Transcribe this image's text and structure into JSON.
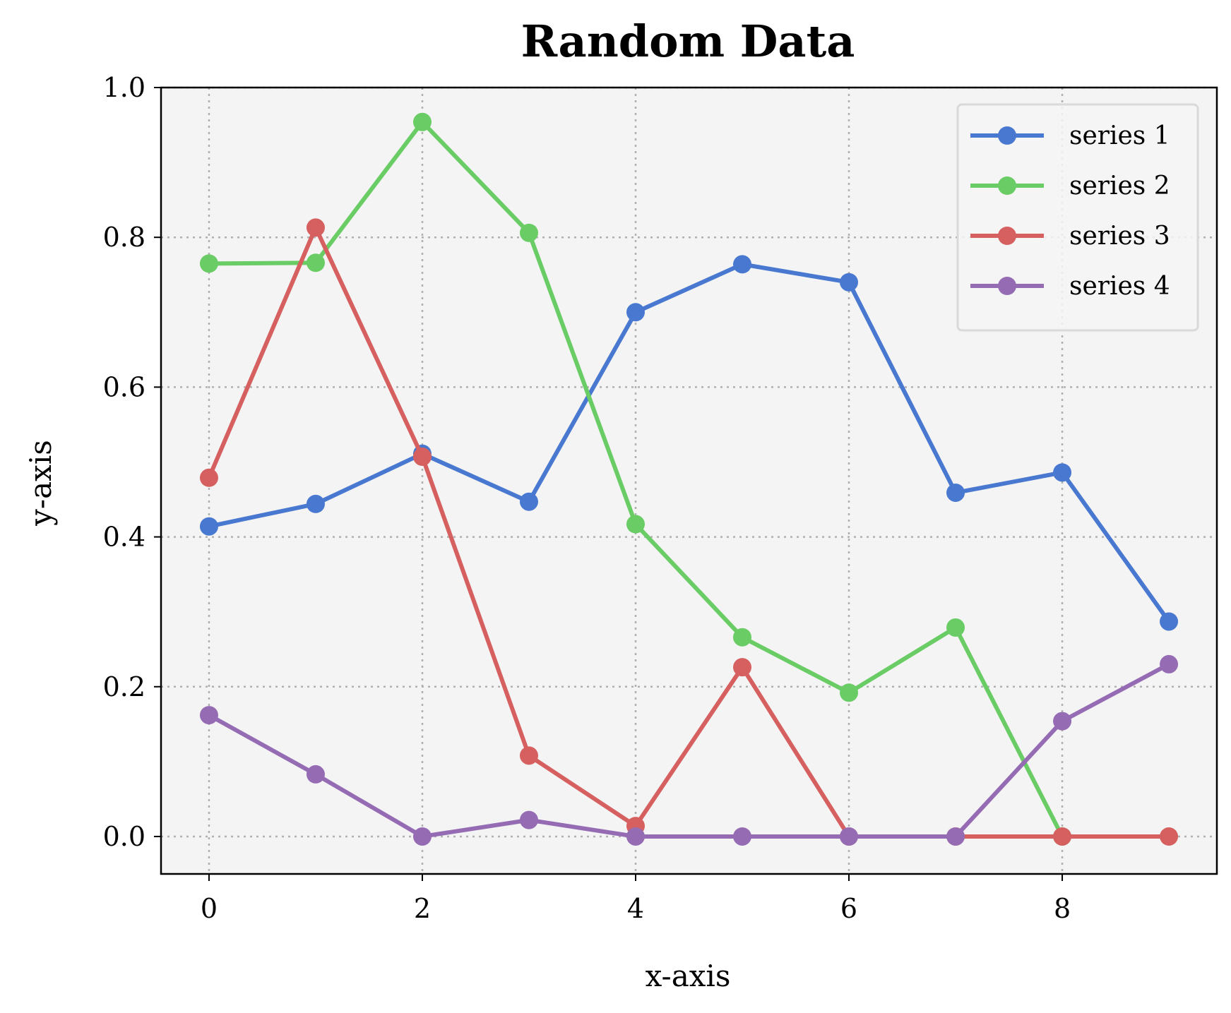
{
  "chart_data": {
    "type": "line",
    "title": "Random Data",
    "xlabel": "x-axis",
    "ylabel": "y-axis",
    "xlim": [
      -0.45,
      9.45
    ],
    "ylim": [
      -0.05,
      1.0
    ],
    "x": [
      0,
      1,
      2,
      3,
      4,
      5,
      6,
      7,
      8,
      9
    ],
    "xticks": [
      0,
      2,
      4,
      6,
      8
    ],
    "xtick_labels": [
      "0",
      "2",
      "4",
      "6",
      "8"
    ],
    "yticks": [
      0.0,
      0.2,
      0.4,
      0.6,
      0.8,
      1.0
    ],
    "ytick_labels": [
      "0.0",
      "0.2",
      "0.4",
      "0.6",
      "0.8",
      "1.0"
    ],
    "grid": true,
    "legend_position": "top-right",
    "background": "#f4f4f4",
    "series": [
      {
        "name": "series 1",
        "color": "#4878d0",
        "values": [
          0.414,
          0.444,
          0.511,
          0.447,
          0.7,
          0.764,
          0.74,
          0.459,
          0.486,
          0.287
        ]
      },
      {
        "name": "series 2",
        "color": "#6acc64",
        "values": [
          0.765,
          0.766,
          0.954,
          0.806,
          0.417,
          0.266,
          0.192,
          0.279,
          0.0,
          null
        ]
      },
      {
        "name": "series 3",
        "color": "#d65f5f",
        "values": [
          0.479,
          0.813,
          0.507,
          0.108,
          0.014,
          0.226,
          0.0,
          0.0,
          0.0,
          0.0
        ]
      },
      {
        "name": "series 4",
        "color": "#956cb4",
        "values": [
          0.162,
          0.083,
          0.0,
          0.022,
          0.0,
          0.0,
          0.0,
          0.0,
          0.154,
          0.23
        ]
      }
    ]
  }
}
